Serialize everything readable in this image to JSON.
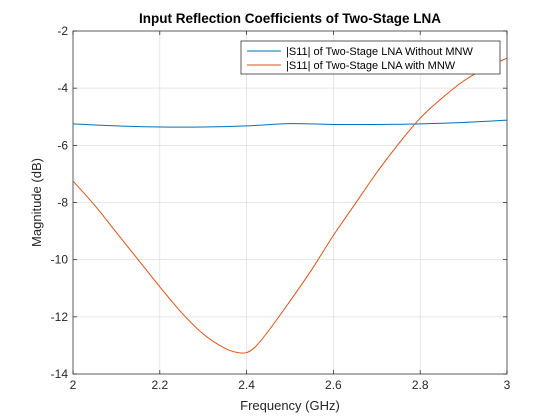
{
  "chart_data": {
    "type": "line",
    "title": "Input Reflection Coefficients of Two-Stage LNA",
    "xlabel": "Frequency (GHz)",
    "ylabel": "Magnitude (dB)",
    "xlim": [
      2,
      3
    ],
    "ylim": [
      -14,
      -2
    ],
    "xticks": [
      2,
      2.2,
      2.4,
      2.6,
      2.8,
      3
    ],
    "yticks": [
      -14,
      -12,
      -10,
      -8,
      -6,
      -4,
      -2
    ],
    "xtick_labels": [
      "2",
      "2.2",
      "2.4",
      "2.6",
      "2.8",
      "3"
    ],
    "ytick_labels": [
      "-14",
      "-12",
      "-10",
      "-8",
      "-6",
      "-4",
      "-2"
    ],
    "grid": true,
    "legend_position": "top-right",
    "series": [
      {
        "name": "|S11| of Two-Stage LNA Without MNW",
        "color": "#0072BD",
        "x": [
          2.0,
          2.1,
          2.2,
          2.3,
          2.4,
          2.5,
          2.6,
          2.7,
          2.8,
          2.9,
          3.0
        ],
        "y": [
          -5.25,
          -5.32,
          -5.36,
          -5.36,
          -5.32,
          -5.24,
          -5.27,
          -5.27,
          -5.25,
          -5.2,
          -5.12
        ]
      },
      {
        "name": "|S11| of Two-Stage LNA with MNW",
        "color": "#D95319",
        "x": [
          2.0,
          2.05,
          2.1,
          2.15,
          2.2,
          2.25,
          2.3,
          2.35,
          2.38,
          2.4,
          2.42,
          2.45,
          2.5,
          2.55,
          2.6,
          2.65,
          2.7,
          2.75,
          2.8,
          2.85,
          2.9,
          2.95,
          3.0
        ],
        "y": [
          -7.25,
          -8.1,
          -9.05,
          -10.0,
          -10.95,
          -11.85,
          -12.6,
          -13.1,
          -13.25,
          -13.25,
          -13.05,
          -12.5,
          -11.45,
          -10.35,
          -9.15,
          -8.05,
          -6.95,
          -5.95,
          -5.05,
          -4.35,
          -3.75,
          -3.3,
          -2.95
        ]
      }
    ]
  }
}
